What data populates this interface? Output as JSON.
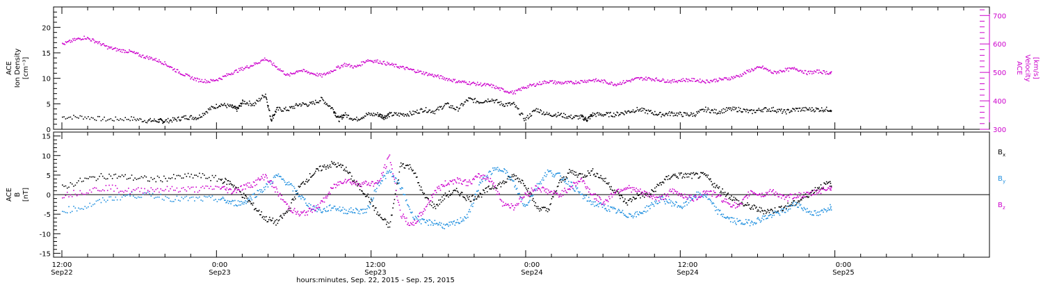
{
  "chart_data": [
    {
      "type": "scatter",
      "panel": "top",
      "ylabel_lines": [
        "ACE",
        "Ion Density",
        "[cm⁻³]"
      ],
      "ylabel_right_lines": [
        "ACE",
        "Velocity",
        "[km/s]"
      ],
      "ylim": [
        0,
        24
      ],
      "ylim_right": [
        300,
        730
      ],
      "yticks": [
        0,
        5,
        10,
        15,
        20
      ],
      "yticks_right": [
        300,
        400,
        500,
        600,
        700
      ],
      "series": [
        {
          "color": "#000000",
          "axis": "left",
          "t": [
            0,
            4,
            8,
            12,
            15,
            17,
            18,
            20,
            22,
            24,
            26,
            28,
            30,
            31,
            32,
            34,
            36,
            37,
            38,
            40,
            42,
            44,
            46,
            48,
            49,
            50,
            52,
            54,
            56,
            57,
            58,
            60,
            62,
            64,
            66,
            68,
            70,
            72,
            74,
            76,
            78,
            80,
            82,
            84,
            86,
            88,
            90,
            92,
            93,
            94,
            96,
            98,
            100,
            102,
            104,
            106,
            108,
            110,
            112,
            114,
            116,
            118,
            120,
            122,
            124,
            126,
            128,
            130,
            132,
            134,
            136,
            137
          ],
          "values": [
            2.5,
            2.5,
            2,
            2.2,
            1.8,
            1.8,
            1.7,
            2,
            2.5,
            2.4,
            4,
            5,
            4.5,
            4,
            5.5,
            5,
            7,
            2,
            4,
            4,
            5,
            5,
            6,
            4,
            2,
            3,
            2,
            3,
            3,
            2.5,
            3,
            3,
            3.2,
            4,
            3.6,
            5,
            4,
            6,
            5.5,
            6,
            5,
            5,
            2,
            4,
            3,
            3,
            2.5,
            2.5,
            2,
            3,
            3,
            3,
            3.5,
            4,
            3.5,
            3,
            3.2,
            3,
            3,
            4,
            3.5,
            4,
            4,
            3.5,
            4,
            4,
            3.5,
            4,
            4,
            4,
            4,
            4
          ]
        },
        {
          "color": "#cc00cc",
          "axis": "right",
          "t": [
            0,
            2,
            4,
            6,
            8,
            10,
            12,
            14,
            16,
            18,
            20,
            22,
            24,
            26,
            28,
            30,
            32,
            34,
            36,
            38,
            40,
            42,
            44,
            46,
            48,
            50,
            52,
            54,
            56,
            58,
            60,
            62,
            64,
            66,
            68,
            70,
            72,
            74,
            76,
            78,
            80,
            82,
            84,
            86,
            88,
            90,
            92,
            94,
            96,
            98,
            100,
            102,
            104,
            106,
            108,
            110,
            112,
            114,
            116,
            118,
            120,
            122,
            124,
            126,
            128,
            130,
            132,
            134,
            136,
            137
          ],
          "values": [
            600,
            615,
            625,
            610,
            590,
            580,
            575,
            560,
            550,
            535,
            510,
            490,
            475,
            470,
            480,
            500,
            515,
            530,
            550,
            520,
            490,
            510,
            500,
            490,
            510,
            530,
            520,
            545,
            540,
            530,
            520,
            510,
            500,
            490,
            480,
            470,
            465,
            460,
            455,
            440,
            430,
            450,
            460,
            470,
            465,
            465,
            470,
            475,
            470,
            460,
            470,
            480,
            480,
            475,
            470,
            475,
            475,
            470,
            475,
            480,
            490,
            510,
            520,
            500,
            510,
            515,
            500,
            505,
            500,
            495
          ]
        }
      ]
    },
    {
      "type": "scatter",
      "panel": "bottom",
      "ylabel_lines": [
        "ACE",
        "B",
        "[nT]"
      ],
      "ylim": [
        -16,
        16
      ],
      "yticks": [
        -15,
        -10,
        -5,
        0,
        5,
        10,
        15
      ],
      "series": [
        {
          "name": "B",
          "sub": "x",
          "color": "#000000",
          "t": [
            0,
            4,
            8,
            12,
            16,
            20,
            24,
            28,
            30,
            32,
            34,
            36,
            38,
            40,
            42,
            44,
            46,
            48,
            50,
            52,
            54,
            56,
            58,
            60,
            62,
            64,
            66,
            68,
            70,
            72,
            74,
            76,
            78,
            80,
            82,
            84,
            86,
            88,
            90,
            92,
            94,
            96,
            98,
            100,
            102,
            104,
            106,
            108,
            110,
            112,
            114,
            116,
            118,
            120,
            122,
            124,
            126,
            128,
            130,
            132,
            134,
            136,
            137
          ],
          "values": [
            2,
            4,
            5,
            4.5,
            4,
            4.5,
            5,
            4,
            3,
            0,
            -3,
            -6,
            -7,
            -4,
            2,
            5,
            7,
            8,
            7,
            3,
            0,
            -5,
            -8,
            8,
            7,
            0,
            -3,
            0,
            1,
            -1,
            0,
            2,
            3,
            5,
            3,
            -3,
            -4,
            3,
            6,
            5,
            6,
            4,
            1,
            -2,
            0,
            0,
            3,
            5,
            5,
            5,
            5,
            2,
            0,
            -2,
            -3,
            -4,
            -4,
            -3,
            -2,
            0,
            2,
            3,
            0
          ]
        },
        {
          "name": "B",
          "sub": "y",
          "color": "#1f8fdf",
          "t": [
            0,
            4,
            8,
            12,
            16,
            20,
            24,
            28,
            30,
            32,
            34,
            36,
            38,
            40,
            42,
            44,
            46,
            48,
            50,
            52,
            54,
            56,
            58,
            60,
            62,
            64,
            66,
            68,
            70,
            72,
            74,
            76,
            78,
            80,
            82,
            84,
            86,
            88,
            90,
            92,
            94,
            96,
            98,
            100,
            102,
            104,
            106,
            108,
            110,
            112,
            114,
            116,
            118,
            120,
            122,
            124,
            126,
            128,
            130,
            132,
            134,
            136,
            137
          ],
          "values": [
            -4,
            -3,
            -1,
            0,
            0,
            -1,
            -1,
            -1,
            -2,
            -2,
            0,
            2,
            5,
            3,
            0,
            -3,
            -4,
            -3,
            -4,
            -4,
            -4,
            3,
            6,
            2,
            -5,
            -7,
            -7,
            -8,
            -7,
            -5,
            3,
            6,
            7,
            3,
            -3,
            2,
            6,
            5,
            3,
            0,
            -2,
            -3,
            -4,
            -5,
            -5,
            -3,
            -1,
            -2,
            -3,
            0,
            0,
            -4,
            -6,
            -7,
            -7,
            -6,
            -5,
            -4,
            -2,
            -4,
            -5,
            -3,
            -3
          ]
        },
        {
          "name": "B",
          "sub": "z",
          "color": "#cc00cc",
          "t": [
            0,
            4,
            8,
            12,
            16,
            20,
            24,
            28,
            30,
            32,
            34,
            36,
            38,
            40,
            42,
            44,
            46,
            48,
            50,
            52,
            54,
            56,
            58,
            60,
            62,
            64,
            66,
            68,
            70,
            72,
            74,
            76,
            78,
            80,
            82,
            84,
            86,
            88,
            90,
            92,
            94,
            96,
            98,
            100,
            102,
            104,
            106,
            108,
            110,
            112,
            114,
            116,
            118,
            120,
            122,
            124,
            126,
            128,
            130,
            132,
            134,
            136,
            137
          ],
          "values": [
            0,
            1,
            2,
            1,
            1.5,
            1.5,
            1.5,
            2,
            1,
            2,
            3,
            5,
            1,
            -3,
            -5,
            -4,
            -2,
            2,
            4,
            3,
            3,
            3,
            10,
            -5,
            -8,
            -4,
            1,
            3,
            4,
            3,
            5,
            4,
            -2,
            -3,
            0,
            2,
            1,
            0,
            2,
            4,
            0,
            -2,
            1,
            2,
            1,
            0,
            -1,
            1,
            0,
            -1,
            1,
            0,
            -2,
            -3,
            1,
            0,
            1,
            -1,
            0,
            0,
            1,
            2,
            2
          ]
        }
      ]
    }
  ],
  "x_axis": {
    "tick_labels": [
      {
        "t": 0,
        "time": "12:00",
        "date": "Sep22"
      },
      {
        "t": 12,
        "time": "0:00",
        "date": "Sep23"
      },
      {
        "t": 24,
        "time": "12:00",
        "date": "Sep23"
      },
      {
        "t": 36,
        "time": "0:00",
        "date": "Sep24"
      },
      {
        "t": 48,
        "time": "12:00",
        "date": "Sep24"
      },
      {
        "t": 60,
        "time": "0:00",
        "date": "Sep25"
      }
    ],
    "title": "hours:minutes, Sep. 22, 2015 - Sep. 25, 2015"
  }
}
